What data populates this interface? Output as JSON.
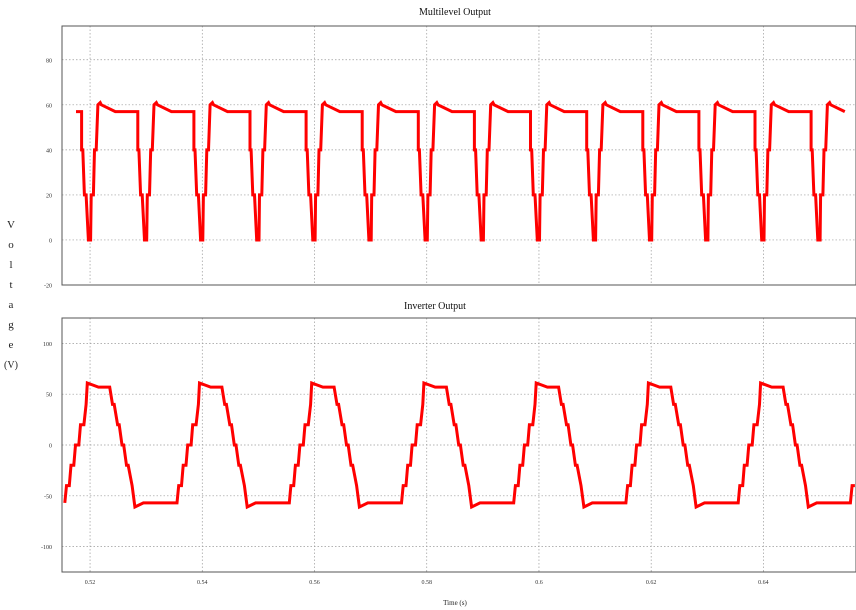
{
  "chart_data": [
    {
      "type": "line",
      "title": "Multilevel Output",
      "xlim": [
        0.515,
        0.6565
      ],
      "ylim": [
        -20,
        95
      ],
      "yticks": [
        -20,
        0,
        20,
        40,
        60,
        80
      ],
      "ytick_labels": [
        "-20",
        "0",
        "20",
        "40",
        "60",
        "80"
      ],
      "grid": true,
      "color": "#ff0000",
      "period": 0.01,
      "first_cycle_start": 0.5185,
      "cycle_shape": {
        "t": [
          0,
          0.0002,
          0.0005,
          0.0008,
          0.0012,
          0.0016,
          0.0017,
          0.0021,
          0.0023,
          0.0026,
          0.0029,
          0.0033,
          0.0035,
          0.006,
          0.009,
          0.01
        ],
        "v": [
          40,
          40,
          20,
          20,
          0,
          0,
          20,
          20,
          40,
          40,
          60,
          61,
          60,
          57,
          57,
          57
        ]
      },
      "series": [
        {
          "name": "",
          "values": []
        }
      ]
    },
    {
      "type": "line",
      "title": "Inverter Output",
      "xlim": [
        0.515,
        0.6565
      ],
      "ylim": [
        -125,
        125
      ],
      "yticks": [
        -100,
        -50,
        0,
        50,
        100
      ],
      "ytick_labels": [
        "-100",
        "-50",
        "0",
        "50",
        "100"
      ],
      "xticks": [
        0.52,
        0.54,
        0.56,
        0.58,
        0.6,
        0.62,
        0.64
      ],
      "xtick_labels": [
        "0.52",
        "0.54",
        "0.56",
        "0.58",
        "0.6",
        "0.62",
        "0.64"
      ],
      "xlabel": "Time (s)",
      "grid": true,
      "color": "#ff0000",
      "period": 0.02,
      "first_cycle_start": 0.5155,
      "cycle_shape": {
        "t": [
          0,
          0.0003,
          0.0008,
          0.0011,
          0.0016,
          0.0019,
          0.0025,
          0.0028,
          0.0034,
          0.0038,
          0.004,
          0.006,
          0.008,
          0.0085,
          0.0088,
          0.0094,
          0.0097,
          0.0102,
          0.0105,
          0.011,
          0.0113,
          0.012,
          0.0125,
          0.014,
          0.017,
          0.02
        ],
        "v": [
          -57,
          -40,
          -40,
          -20,
          -20,
          0,
          0,
          20,
          20,
          40,
          61,
          57,
          57,
          40,
          40,
          20,
          20,
          0,
          0,
          -20,
          -20,
          -40,
          -61,
          -57,
          -57,
          -57
        ]
      },
      "series": [
        {
          "name": "",
          "values": []
        }
      ]
    }
  ],
  "ylabel_letters": [
    "V",
    "o",
    "l",
    "t",
    "a",
    "g",
    "e",
    "(V)"
  ]
}
